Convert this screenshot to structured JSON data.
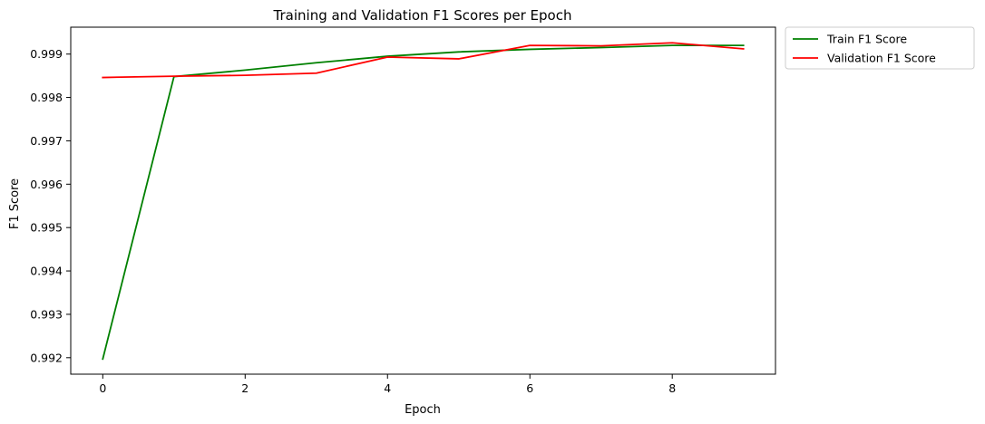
{
  "chart_data": {
    "type": "line",
    "title": "Training and Validation F1 Scores per Epoch",
    "xlabel": "Epoch",
    "ylabel": "F1 Score",
    "xlim": [
      -0.45,
      9.45
    ],
    "ylim": [
      0.99162,
      0.99962
    ],
    "xticks": [
      0,
      2,
      4,
      6,
      8
    ],
    "xtick_labels": [
      "0",
      "2",
      "4",
      "6",
      "8"
    ],
    "yticks": [
      0.992,
      0.993,
      0.994,
      0.995,
      0.996,
      0.997,
      0.998,
      0.999
    ],
    "ytick_labels": [
      "0.992",
      "0.993",
      "0.994",
      "0.995",
      "0.996",
      "0.997",
      "0.998",
      "0.999"
    ],
    "grid": false,
    "legend_position": "outside-top-right",
    "x": [
      0,
      1,
      2,
      3,
      4,
      5,
      6,
      7,
      8,
      9
    ],
    "series": [
      {
        "name": "Train F1 Score",
        "color": "#008000",
        "values": [
          0.99197,
          0.99848,
          0.99863,
          0.9988,
          0.99895,
          0.99905,
          0.99911,
          0.99915,
          0.9992,
          0.9992
        ]
      },
      {
        "name": "Validation F1 Score",
        "color": "#ff0000",
        "values": [
          0.99846,
          0.99849,
          0.99851,
          0.99856,
          0.99893,
          0.99889,
          0.9992,
          0.99919,
          0.99926,
          0.99912
        ]
      }
    ]
  }
}
